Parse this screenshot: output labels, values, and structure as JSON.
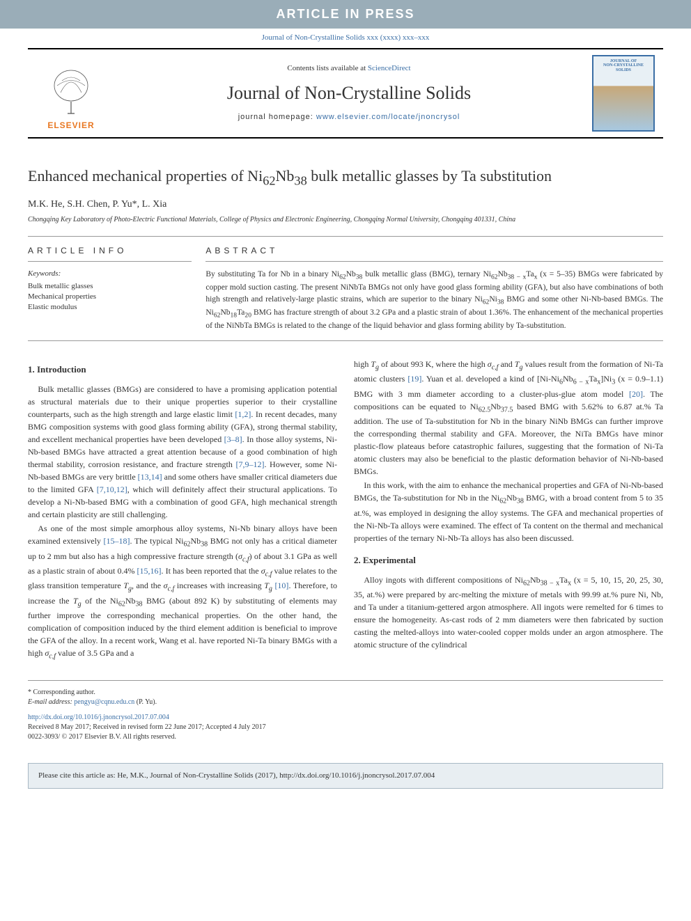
{
  "banner": {
    "text": "ARTICLE IN PRESS",
    "bg_color": "#9aadb8",
    "text_color": "#ffffff"
  },
  "journal_ref_top": "Journal of Non-Crystalline Solids xxx (xxxx) xxx–xxx",
  "header": {
    "contents_prefix": "Contents lists available at ",
    "contents_link": "ScienceDirect",
    "journal_title": "Journal of Non-Crystalline Solids",
    "homepage_prefix": "journal homepage: ",
    "homepage_url": "www.elsevier.com/locate/jnoncrysol",
    "elsevier_label": "ELSEVIER",
    "cover_label_line1": "JOURNAL OF",
    "cover_label_line2": "NON-CRYSTALLINE SOLIDS"
  },
  "article": {
    "title_html": "Enhanced mechanical properties of Ni<sub>62</sub>Nb<sub>38</sub> bulk metallic glasses by Ta substitution",
    "authors": "M.K. He, S.H. Chen, P. Yu*, L. Xia",
    "corresponding_marker": "*",
    "affiliation": "Chongqing Key Laboratory of Photo-Electric Functional Materials, College of Physics and Electronic Engineering, Chongqing Normal University, Chongqing 401331, China"
  },
  "article_info": {
    "heading": "ARTICLE INFO",
    "keywords_label": "Keywords:",
    "keywords": [
      "Bulk metallic glasses",
      "Mechanical properties",
      "Elastic modulus"
    ]
  },
  "abstract": {
    "heading": "ABSTRACT",
    "text_html": "By substituting Ta for Nb in a binary Ni<sub>62</sub>Nb<sub>38</sub> bulk metallic glass (BMG), ternary Ni<sub>62</sub>Nb<sub>38 − x</sub>Ta<sub>x</sub> (x = 5–35) BMGs were fabricated by copper mold suction casting. The present NiNbTa BMGs not only have good glass forming ability (GFA), but also have combinations of both high strength and relatively-large plastic strains, which are superior to the binary Ni<sub>62</sub>Ni<sub>38</sub> BMG and some other Ni-Nb-based BMGs. The Ni<sub>62</sub>Nb<sub>18</sub>Ta<sub>20</sub> BMG has fracture strength of about 3.2 GPa and a plastic strain of about 1.36%. The enhancement of the mechanical properties of the NiNbTa BMGs is related to the change of the liquid behavior and glass forming ability by Ta-substitution."
  },
  "sections": {
    "intro_heading": "1. Introduction",
    "intro_p1_html": "Bulk metallic glasses (BMGs) are considered to have a promising application potential as structural materials due to their unique properties superior to their crystalline counterparts, such as the high strength and large elastic limit <span class=\"ref-link\">[1,2]</span>. In recent decades, many BMG composition systems with good glass forming ability (GFA), strong thermal stability, and excellent mechanical properties have been developed <span class=\"ref-link\">[3–8]</span>. In those alloy systems, Ni-Nb-based BMGs have attracted a great attention because of a good combination of high thermal stability, corrosion resistance, and fracture strength <span class=\"ref-link\">[7,9–12]</span>. However, some Ni-Nb-based BMGs are very brittle <span class=\"ref-link\">[13,14]</span> and some others have smaller critical diameters due to the limited GFA <span class=\"ref-link\">[7,10,12]</span>, which will definitely affect their structural applications. To develop a Ni-Nb-based BMG with a combination of good GFA, high mechanical strength and certain plasticity are still challenging.",
    "intro_p2_html": "As one of the most simple amorphous alloy systems, Ni-Nb binary alloys have been examined extensively <span class=\"ref-link\">[15–18]</span>. The typical Ni<sub>62</sub>Nb<sub>38</sub> BMG not only has a critical diameter up to 2 mm but also has a high compressive fracture strength (<i>σ<sub>c,f</sub></i>) of about 3.1 GPa as well as a plastic strain of about 0.4% <span class=\"ref-link\">[15,16]</span>. It has been reported that the <i>σ<sub>c,f</sub></i> value relates to the glass transition temperature <i>T<sub>g</sub></i>, and the <i>σ<sub>c,f</sub></i> increases with increasing <i>T<sub>g</sub></i> <span class=\"ref-link\">[10]</span>. Therefore, to increase the <i>T<sub>g</sub></i> of the Ni<sub>62</sub>Nb<sub>38</sub> BMG (about 892 K) by substituting of elements may further improve the corresponding mechanical properties. On the other hand, the complication of composition induced by the third element addition is beneficial to improve the GFA of the alloy. In a recent work, Wang et al. have reported Ni-Ta binary BMGs with a high <i>σ<sub>c,f</sub></i> value of 3.5 GPa and a",
    "intro_p3_html": "high <i>T<sub>g</sub></i> of about 993 K, where the high <i>σ<sub>c,f</sub></i> and <i>T<sub>g</sub></i> values result from the formation of Ni-Ta atomic clusters <span class=\"ref-link\">[19]</span>. Yuan et al. developed a kind of [Ni-Ni<sub>6</sub>Nb<sub>6 − x</sub>Ta<sub>x</sub>]Ni<sub>3</sub> (x = 0.9–1.1) BMG with 3 mm diameter according to a cluster-plus-glue atom model <span class=\"ref-link\">[20]</span>. The compositions can be equated to Ni<sub>62.5</sub>Nb<sub>37.5</sub> based BMG with 5.62% to 6.87 at.% Ta addition. The use of Ta-substitution for Nb in the binary NiNb BMGs can further improve the corresponding thermal stability and GFA. Moreover, the NiTa BMGs have minor plastic-flow plateaus before catastrophic failures, suggesting that the formation of Ni-Ta atomic clusters may also be beneficial to the plastic deformation behavior of Ni-Nb-based BMGs.",
    "intro_p4_html": "In this work, with the aim to enhance the mechanical properties and GFA of Ni-Nb-based BMGs, the Ta-substitution for Nb in the Ni<sub>62</sub>Nb<sub>38</sub> BMG, with a broad content from 5 to 35 at.%, was employed in designing the alloy systems. The GFA and mechanical properties of the Ni-Nb-Ta alloys were examined. The effect of Ta content on the thermal and mechanical properties of the ternary Ni-Nb-Ta alloys has also been discussed.",
    "exp_heading": "2. Experimental",
    "exp_p1_html": "Alloy ingots with different compositions of Ni<sub>62</sub>Nb<sub>38 − x</sub>Ta<sub>x</sub> (x = 5, 10, 15, 20, 25, 30, 35, at.%) were prepared by arc-melting the mixture of metals with 99.99 at.% pure Ni, Nb, and Ta under a titanium-gettered argon atmosphere. All ingots were remelted for 6 times to ensure the homogeneity. As-cast rods of 2 mm diameters were then fabricated by suction casting the melted-alloys into water-cooled copper molds under an argon atmosphere. The atomic structure of the cylindrical"
  },
  "footer": {
    "corr_label": "* Corresponding author.",
    "email_label": "E-mail address: ",
    "email": "pengyu@cqnu.edu.cn",
    "email_suffix": " (P. Yu).",
    "doi": "http://dx.doi.org/10.1016/j.jnoncrysol.2017.07.004",
    "received": "Received 8 May 2017; Received in revised form 22 June 2017; Accepted 4 July 2017",
    "copyright": "0022-3093/ © 2017 Elsevier B.V. All rights reserved."
  },
  "cite_box": "Please cite this article as: He, M.K., Journal of Non-Crystalline Solids (2017), http://dx.doi.org/10.1016/j.jnoncrysol.2017.07.004",
  "colors": {
    "link": "#3a6ea5",
    "banner_bg": "#9aadb8",
    "elsevier_orange": "#e87722",
    "cite_bg": "#e8eef2"
  }
}
